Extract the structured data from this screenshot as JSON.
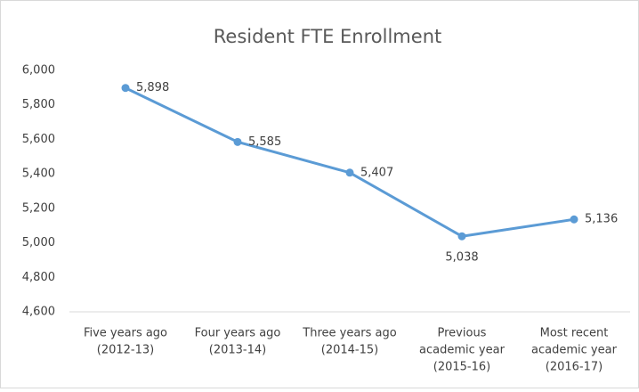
{
  "chart_data": {
    "type": "line",
    "title": "Resident FTE Enrollment",
    "categories": [
      [
        "Five years ago",
        "(2012-13)"
      ],
      [
        "Four years ago",
        "(2013-14)"
      ],
      [
        "Three years ago",
        "(2014-15)"
      ],
      [
        "Previous",
        "academic year",
        "(2015-16)"
      ],
      [
        "Most recent",
        "academic year",
        "(2016-17)"
      ]
    ],
    "series": [
      {
        "name": "Resident FTE Enrollment",
        "color": "#5b9bd5",
        "values": [
          5898,
          5585,
          5407,
          5038,
          5136
        ],
        "value_labels": [
          "5,898",
          "5,585",
          "5,407",
          "5,038",
          "5,136"
        ]
      }
    ],
    "ylim": [
      4600,
      6000
    ],
    "yticks": [
      {
        "value": 4600,
        "label": "4,600"
      },
      {
        "value": 4800,
        "label": "4,800"
      },
      {
        "value": 5000,
        "label": "5,000"
      },
      {
        "value": 5200,
        "label": "5,200"
      },
      {
        "value": 5400,
        "label": "5,400"
      },
      {
        "value": 5600,
        "label": "5,600"
      },
      {
        "value": 5800,
        "label": "5,800"
      },
      {
        "value": 6000,
        "label": "6,000"
      }
    ],
    "grid": false
  }
}
